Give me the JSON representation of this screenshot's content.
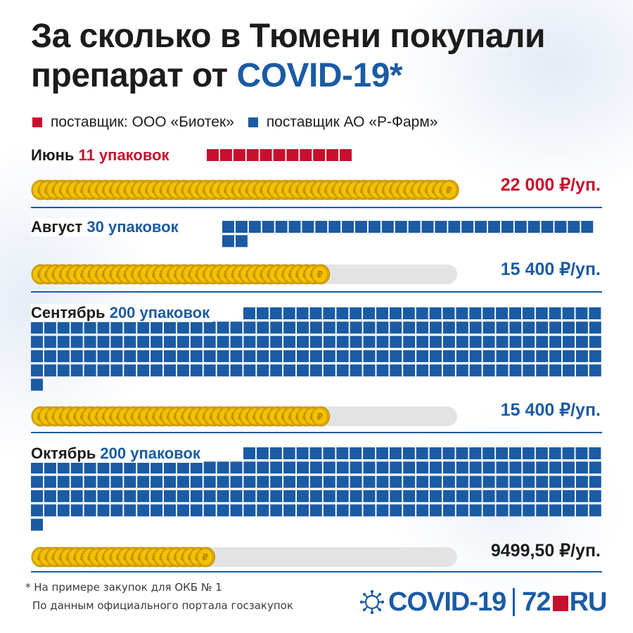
{
  "title": {
    "line1": "За сколько в Тюмени покупали",
    "line2_prefix": "препарат от ",
    "line2_accent": "COVID-19*"
  },
  "legend": {
    "biotek": "поставщик: ООО «Биотек»",
    "rpharm": "поставщик АО «Р-Фарм»"
  },
  "colors": {
    "biotek": "#c8102e",
    "rpharm": "#1b5ba4",
    "coin": "#f2c200",
    "track": "#e3e3e3"
  },
  "chart_data": {
    "type": "bar",
    "categories": [
      "Июнь",
      "Август",
      "Сентябрь",
      "Октябрь"
    ],
    "series": [
      {
        "name": "поставщик: ООО «Биотек»",
        "values": [
          11,
          0,
          0,
          0
        ]
      },
      {
        "name": "поставщик АО «Р-Фарм»",
        "values": [
          0,
          30,
          200,
          200
        ]
      }
    ],
    "packages": [
      11,
      30,
      200,
      200
    ],
    "suppliers": [
      "biotek",
      "rpharm",
      "rpharm",
      "rpharm"
    ],
    "package_labels": [
      "11 упаковок",
      "30 упаковок",
      "200 упаковок",
      "200 упаковок"
    ],
    "prices": [
      22000,
      15400,
      15400,
      9499.5
    ],
    "price_labels": [
      "22 000 ₽/уп.",
      "15 400 ₽/уп.",
      "15 400 ₽/уп.",
      "9499,50 ₽/уп."
    ],
    "price_max": 22000,
    "coin_symbol": "₽"
  },
  "footnote": {
    "line1": "* На примере закупок для ОКБ № 1",
    "line2": "По данным официального портала госзакупок"
  },
  "logo": {
    "part1": "COVID-19",
    "part2a": "72",
    "part2b": "RU"
  }
}
